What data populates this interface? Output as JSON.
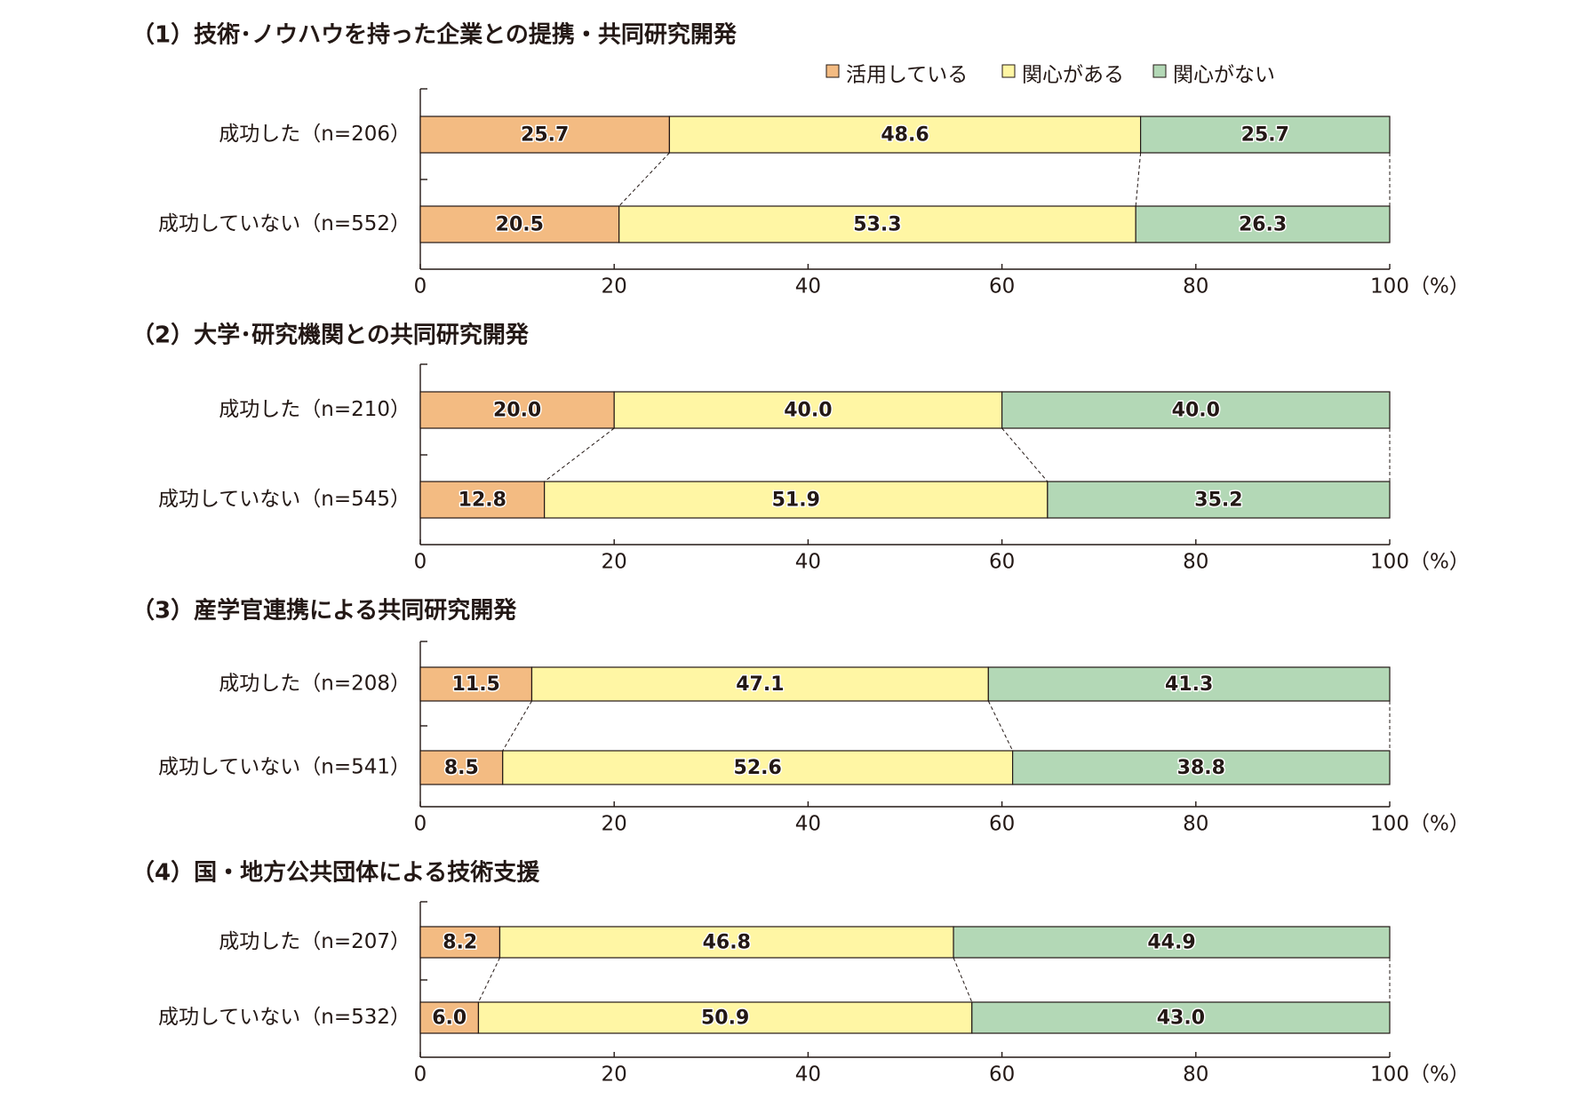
{
  "colors": {
    "活用している": "#f3bb82",
    "関心がある": "#fff6a4",
    "関心がない": "#b3d8b6",
    "axis": "#231815"
  },
  "legend": [
    "活用している",
    "関心がある",
    "関心がない"
  ],
  "axis": {
    "ticks": [
      "0",
      "20",
      "40",
      "60",
      "80",
      "100"
    ],
    "unit": "（%）"
  },
  "chart_data": [
    {
      "type": "bar",
      "orientation": "horizontal-stacked",
      "title": "（1）技術･ノウハウを持った企業との提携・共同研究開発",
      "categories": [
        "成功した（n=206）",
        "成功していない（n=552）"
      ],
      "series": [
        {
          "name": "活用している",
          "values": [
            25.7,
            20.5
          ]
        },
        {
          "name": "関心がある",
          "values": [
            48.6,
            53.3
          ]
        },
        {
          "name": "関心がない",
          "values": [
            25.7,
            26.3
          ]
        }
      ],
      "xlim": [
        0,
        100
      ],
      "xlabel": "（%）"
    },
    {
      "type": "bar",
      "orientation": "horizontal-stacked",
      "title": "（2）大学･研究機関との共同研究開発",
      "categories": [
        "成功した（n=210）",
        "成功していない（n=545）"
      ],
      "series": [
        {
          "name": "活用している",
          "values": [
            20.0,
            12.8
          ]
        },
        {
          "name": "関心がある",
          "values": [
            40.0,
            51.9
          ]
        },
        {
          "name": "関心がない",
          "values": [
            40.0,
            35.2
          ]
        }
      ],
      "xlim": [
        0,
        100
      ],
      "xlabel": "（%）"
    },
    {
      "type": "bar",
      "orientation": "horizontal-stacked",
      "title": "（3）産学官連携による共同研究開発",
      "categories": [
        "成功した（n=208）",
        "成功していない（n=541）"
      ],
      "series": [
        {
          "name": "活用している",
          "values": [
            11.5,
            8.5
          ]
        },
        {
          "name": "関心がある",
          "values": [
            47.1,
            52.6
          ]
        },
        {
          "name": "関心がない",
          "values": [
            41.3,
            38.8
          ]
        }
      ],
      "xlim": [
        0,
        100
      ],
      "xlabel": "（%）"
    },
    {
      "type": "bar",
      "orientation": "horizontal-stacked",
      "title": "（4）国・地方公共団体による技術支援",
      "categories": [
        "成功した（n=207）",
        "成功していない（n=532）"
      ],
      "series": [
        {
          "name": "活用している",
          "values": [
            8.2,
            6.0
          ]
        },
        {
          "name": "関心がある",
          "values": [
            46.8,
            50.9
          ]
        },
        {
          "name": "関心がない",
          "values": [
            44.9,
            43.0
          ]
        }
      ],
      "xlim": [
        0,
        100
      ],
      "xlabel": "（%）"
    }
  ]
}
